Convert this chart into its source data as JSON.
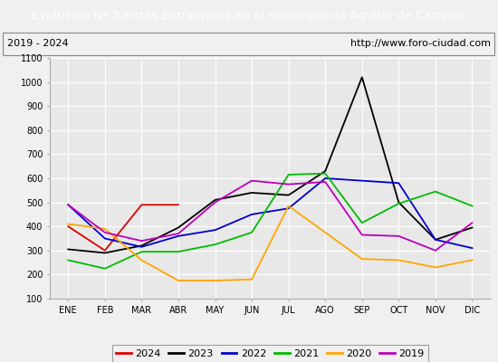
{
  "title": "Evolucion Nº Turistas Extranjeros en el municipio de Aguilar de Campoo",
  "subtitle_left": "2019 - 2024",
  "subtitle_right": "http://www.foro-ciudad.com",
  "title_bg": "#4472c4",
  "title_color": "#ffffff",
  "months": [
    "ENE",
    "FEB",
    "MAR",
    "ABR",
    "MAY",
    "JUN",
    "JUL",
    "AGO",
    "SEP",
    "OCT",
    "NOV",
    "DIC"
  ],
  "ylim": [
    100,
    1100
  ],
  "yticks": [
    100,
    200,
    300,
    400,
    500,
    600,
    700,
    800,
    900,
    1000,
    1100
  ],
  "series": {
    "2024": {
      "color": "#dd0000",
      "values": [
        400,
        300,
        490,
        490,
        null,
        null,
        null,
        null,
        null,
        null,
        null,
        null
      ]
    },
    "2023": {
      "color": "#000000",
      "values": [
        305,
        290,
        320,
        395,
        510,
        540,
        530,
        630,
        1020,
        500,
        345,
        395
      ]
    },
    "2022": {
      "color": "#0000cc",
      "values": [
        490,
        350,
        315,
        360,
        385,
        450,
        475,
        600,
        590,
        580,
        345,
        310
      ]
    },
    "2021": {
      "color": "#00bb00",
      "values": [
        260,
        225,
        295,
        295,
        325,
        375,
        615,
        620,
        415,
        495,
        545,
        485
      ]
    },
    "2020": {
      "color": "#ffa500",
      "values": [
        410,
        390,
        260,
        175,
        175,
        180,
        485,
        375,
        265,
        260,
        230,
        260
      ]
    },
    "2019": {
      "color": "#bb00bb",
      "values": [
        490,
        375,
        340,
        370,
        500,
        590,
        575,
        585,
        365,
        360,
        300,
        415
      ]
    }
  },
  "legend_order": [
    "2024",
    "2023",
    "2022",
    "2021",
    "2020",
    "2019"
  ],
  "bg_color": "#f0f0f0",
  "plot_bg": "#e8e8e8",
  "grid_color": "#ffffff"
}
